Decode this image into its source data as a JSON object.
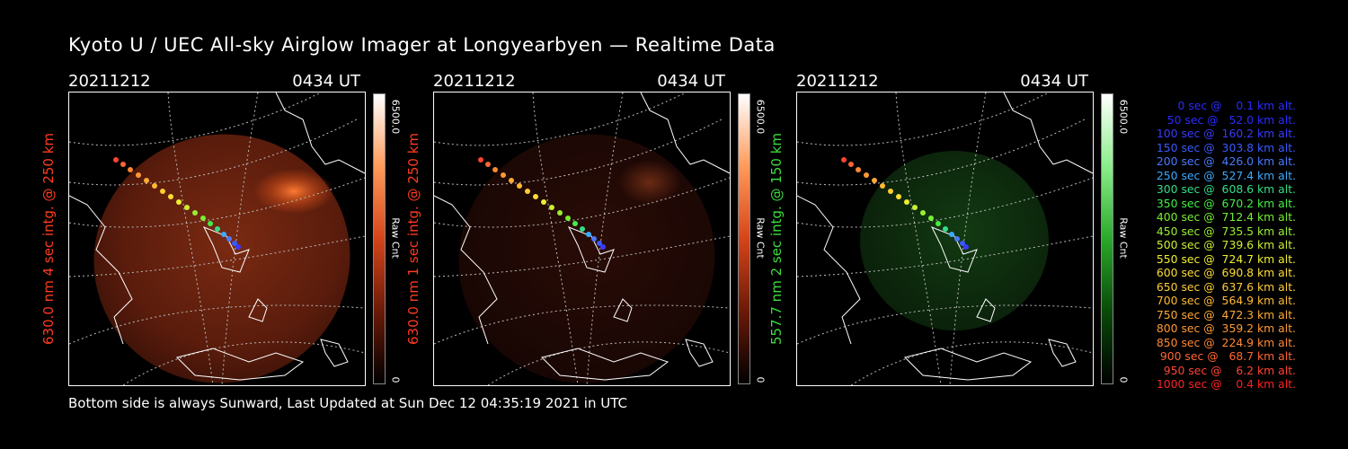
{
  "title": "Kyoto U / UEC All-sky Airglow Imager at Longyearbyen — Realtime Data",
  "footer": "Bottom side is always Sunward, Last Updated at Sun Dec 12 04:35:19 2021 in UTC",
  "panels": [
    {
      "date": "20211212",
      "time": "0434 UT",
      "ylabel": "630.0 nm 4 sec intg. @ 250 km",
      "label_color": "#ff3b1f",
      "cbar_max": "6500.0",
      "cbar_unit": "Raw Cnt",
      "cbar_min": "0"
    },
    {
      "date": "20211212",
      "time": "0434 UT",
      "ylabel": "630.0 nm 1 sec intg. @ 250 km",
      "label_color": "#ff3b1f",
      "cbar_max": "6500.0",
      "cbar_unit": "Raw Cnt",
      "cbar_min": "0"
    },
    {
      "date": "20211212",
      "time": "0434 UT",
      "ylabel": "557.7 nm 2 sec intg. @ 150 km",
      "label_color": "#3ddc3d",
      "cbar_max": "6500.0",
      "cbar_unit": "Raw Cnt",
      "cbar_min": "0"
    }
  ],
  "legend": [
    {
      "text": "   0 sec @    0.1 km alt.",
      "color": "#2a2aff"
    },
    {
      "text": "  50 sec @   52.0 km alt.",
      "color": "#2a2aff"
    },
    {
      "text": " 100 sec @  160.2 km alt.",
      "color": "#3a3aff"
    },
    {
      "text": " 150 sec @  303.8 km alt.",
      "color": "#3a5aff"
    },
    {
      "text": " 200 sec @  426.0 km alt.",
      "color": "#4a7aff"
    },
    {
      "text": " 250 sec @  527.4 km alt.",
      "color": "#3aaaff"
    },
    {
      "text": " 300 sec @  608.6 km alt.",
      "color": "#33dd88"
    },
    {
      "text": " 350 sec @  670.2 km alt.",
      "color": "#44ee44"
    },
    {
      "text": " 400 sec @  712.4 km alt.",
      "color": "#77ee33"
    },
    {
      "text": " 450 sec @  735.5 km alt.",
      "color": "#99ee33"
    },
    {
      "text": " 500 sec @  739.6 km alt.",
      "color": "#ccee33"
    },
    {
      "text": " 550 sec @  724.7 km alt.",
      "color": "#eeee33"
    },
    {
      "text": " 600 sec @  690.8 km alt.",
      "color": "#ffdd33"
    },
    {
      "text": " 650 sec @  637.6 km alt.",
      "color": "#ffcc33"
    },
    {
      "text": " 700 sec @  564.9 km alt.",
      "color": "#ffbb33"
    },
    {
      "text": " 750 sec @  472.3 km alt.",
      "color": "#ffaa33"
    },
    {
      "text": " 800 sec @  359.2 km alt.",
      "color": "#ff9933"
    },
    {
      "text": " 850 sec @  224.9 km alt.",
      "color": "#ff8833"
    },
    {
      "text": " 900 sec @   68.7 km alt.",
      "color": "#ff6633"
    },
    {
      "text": " 950 sec @    6.2 km alt.",
      "color": "#ff4433"
    },
    {
      "text": "1000 sec @    0.4 km alt.",
      "color": "#ff2222"
    }
  ]
}
